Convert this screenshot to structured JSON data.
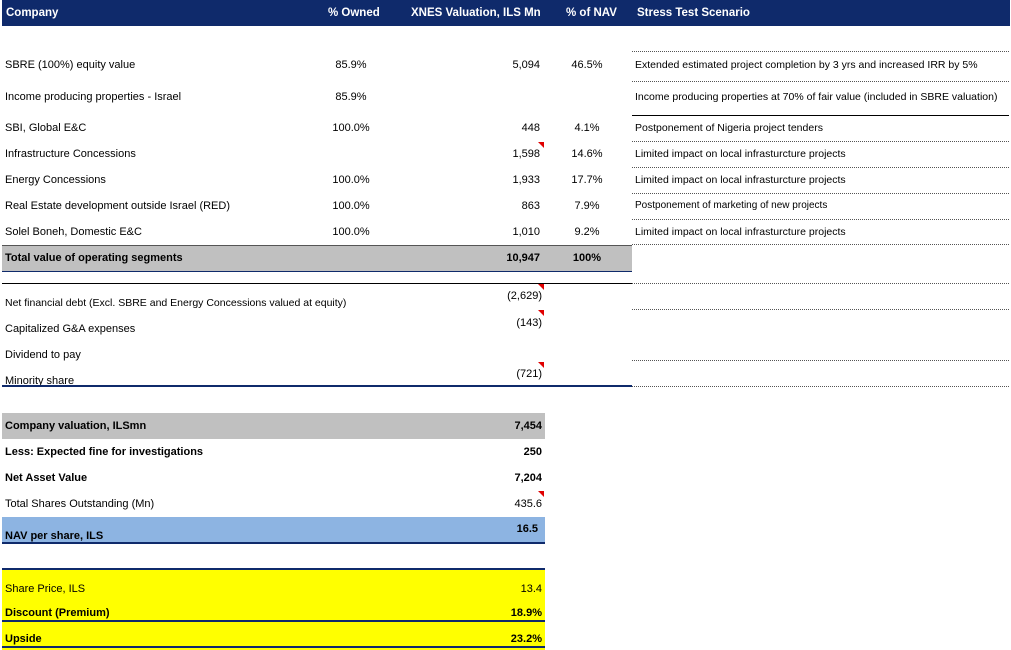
{
  "headers": {
    "company": "Company",
    "owned": "% Owned",
    "valuation": "XNES Valuation, ILS Mn",
    "nav_pct": "% of NAV",
    "scenario": "Stress Test Scenario"
  },
  "segments": [
    {
      "company": "SBRE (100%) equity value",
      "owned": "85.9%",
      "valuation": "5,094",
      "nav_pct": "46.5%",
      "scenario": "Extended estimated project completion by 3 yrs and increased IRR by 5%"
    },
    {
      "company": "Income producing properties - Israel",
      "owned": "85.9%",
      "valuation": "",
      "nav_pct": "",
      "scenario": "Income producing properties at 70% of fair value (included in SBRE valuation)"
    },
    {
      "company": "SBI, Global E&C",
      "owned": "100.0%",
      "valuation": "448",
      "nav_pct": "4.1%",
      "scenario": "Postponement of Nigeria project tenders"
    },
    {
      "company": "Infrastructure Concessions",
      "owned": "",
      "valuation": "1,598",
      "nav_pct": "14.6%",
      "scenario": "Limited impact on local infrasturcture projects"
    },
    {
      "company": "Energy Concessions",
      "owned": "100.0%",
      "valuation": "1,933",
      "nav_pct": "17.7%",
      "scenario": "Limited impact on local infrasturcture projects"
    },
    {
      "company": "Real Estate development outside Israel (RED)",
      "owned": "100.0%",
      "valuation": "863",
      "nav_pct": "7.9%",
      "scenario": "Postponement of marketing of new projects"
    },
    {
      "company": "Solel Boneh, Domestic E&C",
      "owned": "100.0%",
      "valuation": "1,010",
      "nav_pct": "9.2%",
      "scenario": "Limited impact on local infrasturcture projects"
    }
  ],
  "total": {
    "label": "Total value of operating segments",
    "valuation": "10,947",
    "nav_pct": "100%"
  },
  "adjustments": [
    {
      "label": "Net financial debt (Excl. SBRE and Energy Concessions valued at equity)",
      "value": "(2,629)"
    },
    {
      "label": "Capitalized G&A expenses",
      "value": "(143)"
    },
    {
      "label": "Dividend to pay",
      "value": ""
    },
    {
      "label": "Minority share",
      "value": "(721)"
    }
  ],
  "company_valuation": {
    "label": "Company valuation, ILSmn",
    "value": "7,454"
  },
  "fine": {
    "label": "Less: Expected fine for investigations",
    "value": "250"
  },
  "nav": {
    "label": "Net Asset Value",
    "value": "7,204"
  },
  "shares": {
    "label": "Total Shares Outstanding (Mn)",
    "value": "435.6"
  },
  "nav_per_share": {
    "label": "NAV per share, ILS",
    "value": "16.5"
  },
  "share_price": {
    "label": "Share Price, ILS",
    "value": "13.4"
  },
  "discount": {
    "label": "Discount (Premium)",
    "value": "18.9%"
  },
  "upside": {
    "label": "Upside",
    "value": "23.2%"
  },
  "colors": {
    "header": "#0f2a6b",
    "gray": "#c0c0c0",
    "blue": "#8db4e2",
    "yellow": "#ffff00",
    "comment_marker": "#e00000"
  }
}
